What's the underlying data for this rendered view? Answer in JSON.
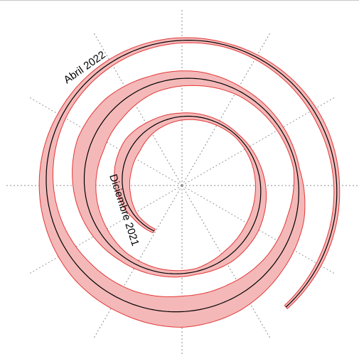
{
  "chart_data": {
    "type": "line",
    "layout": "spiral",
    "start_label": "Diciembre 2021",
    "end_label": "Abril 2022",
    "turns": 2.8,
    "radial_spokes": 12,
    "spiral_line": "black",
    "band_fill": "#f4b8b8",
    "band_stroke": "#e23838",
    "grid_color": "#8c8c8c",
    "band_half_width": [
      3,
      4,
      9,
      12,
      13,
      8,
      5,
      4,
      3,
      5,
      8,
      10,
      9,
      4,
      5,
      7,
      12,
      16,
      20,
      18,
      12,
      10,
      6,
      5,
      4,
      12,
      15,
      20,
      22,
      18,
      16,
      12,
      9,
      6,
      5,
      4,
      3,
      4,
      5,
      4,
      4,
      3
    ]
  }
}
